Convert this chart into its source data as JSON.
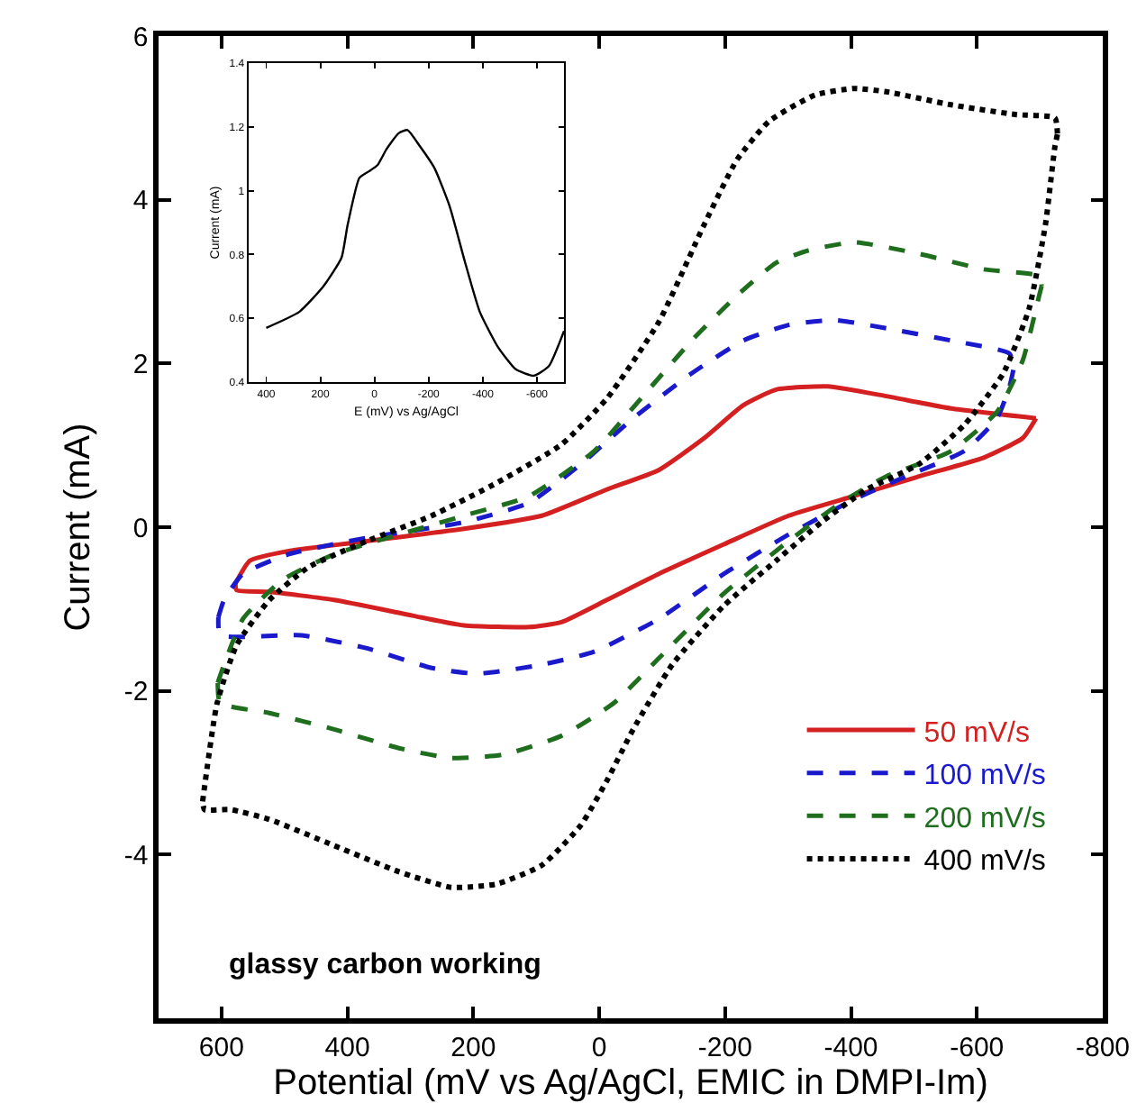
{
  "chart_data": [
    {
      "type": "line",
      "xlabel": "Potential (mV vs Ag/AgCl, EMIC in DMPI-Im)",
      "ylabel": "Current (mA)",
      "xlim": [
        700,
        -800
      ],
      "xticks": [
        600,
        400,
        200,
        0,
        -200,
        -400,
        -600,
        -800
      ],
      "ylim": [
        -6,
        6
      ],
      "yticks": [
        -4,
        -2,
        0,
        2,
        4,
        6
      ],
      "legend": "bottom right",
      "marker": "none",
      "annotations": [
        "glassy carbon working"
      ],
      "series": [
        {
          "name": "50 mV/s",
          "color": "#d42020",
          "line_style": "solid",
          "x": [
            578,
            555,
            493,
            369,
            215,
            91,
            -12,
            -95,
            -167,
            -229,
            -281,
            -363,
            -456,
            -559,
            -694
          ],
          "values": [
            -0.69,
            -0.41,
            -0.29,
            -0.17,
            -0.02,
            0.14,
            0.46,
            0.7,
            1.09,
            1.49,
            1.68,
            1.72,
            1.6,
            1.45,
            1.33
          ]
        },
        {
          "color": "#d42020",
          "line_style": "solid",
          "x": [
            -694,
            -673,
            -611,
            -508,
            -405,
            -301,
            -198,
            -95,
            -12,
            60,
            111,
            215,
            297,
            421,
            524,
            576,
            578
          ],
          "values": [
            1.33,
            1.09,
            0.85,
            0.62,
            0.38,
            0.14,
            -0.21,
            -0.57,
            -0.89,
            -1.16,
            -1.22,
            -1.2,
            -1.08,
            -0.89,
            -0.79,
            -0.77,
            -0.69
          ]
        },
        {
          "name": "100 mV/s",
          "color": "#1a1acc",
          "line_style": "dashed",
          "x": [
            605,
            596,
            566,
            493,
            369,
            215,
            111,
            29,
            -54,
            -147,
            -229,
            -301,
            -374,
            -456,
            -559,
            -652,
            -658
          ],
          "values": [
            -1.1,
            -0.89,
            -0.57,
            -0.33,
            -0.13,
            0.06,
            0.3,
            0.77,
            1.33,
            1.88,
            2.28,
            2.47,
            2.53,
            2.43,
            2.28,
            2.12,
            1.92
          ]
        },
        {
          "color": "#1a1acc",
          "line_style": "dashed",
          "x": [
            -658,
            -652,
            -632,
            -580,
            -487,
            -405,
            -301,
            -198,
            -95,
            8,
            91,
            194,
            266,
            369,
            473,
            602,
            605
          ],
          "values": [
            1.92,
            1.72,
            1.33,
            0.93,
            0.62,
            0.34,
            -0.09,
            -0.57,
            -1.12,
            -1.52,
            -1.68,
            -1.79,
            -1.72,
            -1.48,
            -1.32,
            -1.32,
            -1.1
          ]
        },
        {
          "name": "200 mV/s",
          "color": "#1e6e1e",
          "line_style": "dashed",
          "x": [
            606,
            596,
            566,
            504,
            421,
            318,
            215,
            111,
            8,
            -74,
            -147,
            -219,
            -281,
            -332,
            -405,
            -508,
            -611,
            -699,
            -703
          ],
          "values": [
            -1.9,
            -1.68,
            -1.12,
            -0.65,
            -0.33,
            -0.09,
            0.14,
            0.38,
            0.93,
            1.64,
            2.28,
            2.83,
            3.23,
            3.38,
            3.48,
            3.34,
            3.15,
            3.07,
            2.95
          ]
        },
        {
          "color": "#1e6e1e",
          "line_style": "dashed",
          "x": [
            -703,
            -699,
            -673,
            -632,
            -559,
            -456,
            -384,
            -301,
            -198,
            -95,
            -23,
            60,
            153,
            235,
            318,
            421,
            524,
            602,
            606
          ],
          "values": [
            2.95,
            2.83,
            2.04,
            1.41,
            0.93,
            0.62,
            0.3,
            -0.17,
            -0.81,
            -1.6,
            -2.15,
            -2.55,
            -2.78,
            -2.82,
            -2.7,
            -2.47,
            -2.27,
            -2.15,
            -1.9
          ]
        },
        {
          "name": "400 mV/s",
          "color": "#000000",
          "line_style": "dotted",
          "x": [
            630,
            607,
            576,
            524,
            462,
            369,
            266,
            163,
            60,
            -12,
            -95,
            -167,
            -219,
            -270,
            -343,
            -405,
            -456,
            -559,
            -663,
            -724,
            -728
          ],
          "values": [
            -3.35,
            -2.15,
            -1.44,
            -0.89,
            -0.49,
            -0.17,
            0.14,
            0.54,
            1.01,
            1.57,
            2.51,
            3.7,
            4.49,
            4.96,
            5.28,
            5.36,
            5.32,
            5.16,
            5.04,
            5.0,
            4.8
          ]
        },
        {
          "color": "#000000",
          "line_style": "dotted",
          "x": [
            -728,
            -724,
            -709,
            -683,
            -642,
            -580,
            -508,
            -425,
            -353,
            -281,
            -198,
            -116,
            -54,
            -12,
            29,
            91,
            163,
            235,
            318,
            421,
            524,
            586,
            627,
            630
          ],
          "values": [
            4.8,
            4.65,
            3.7,
            2.67,
            1.88,
            1.25,
            0.77,
            0.46,
            0.06,
            -0.41,
            -0.96,
            -1.68,
            -2.47,
            -3.1,
            -3.64,
            -4.13,
            -4.36,
            -4.4,
            -4.21,
            -3.89,
            -3.57,
            -3.45,
            -3.45,
            -3.35
          ]
        }
      ]
    },
    {
      "type": "line",
      "xlabel": "E (mV) vs Ag/AgCl",
      "ylabel": "Current (mA)",
      "xlim": [
        465,
        -700
      ],
      "xticks": [
        400,
        200,
        0,
        -200,
        -400,
        -600
      ],
      "ylim": [
        0.4,
        1.4
      ],
      "yticks": [
        0.4,
        0.6,
        0.8,
        1,
        1.2,
        1.4
      ],
      "legend": false,
      "marker": "none",
      "series": [
        {
          "color": "#000000",
          "line_style": "solid",
          "x": [
            400,
            278,
            189,
            122,
            100,
            56,
            22,
            -11,
            -44,
            -89,
            -122,
            -167,
            -222,
            -278,
            -333,
            -389,
            -456,
            -522,
            -589,
            -644,
            -700
          ],
          "values": [
            0.57,
            0.62,
            0.7,
            0.79,
            0.89,
            1.04,
            1.06,
            1.08,
            1.13,
            1.18,
            1.19,
            1.14,
            1.07,
            0.95,
            0.78,
            0.62,
            0.51,
            0.44,
            0.42,
            0.45,
            0.56
          ]
        }
      ]
    }
  ]
}
